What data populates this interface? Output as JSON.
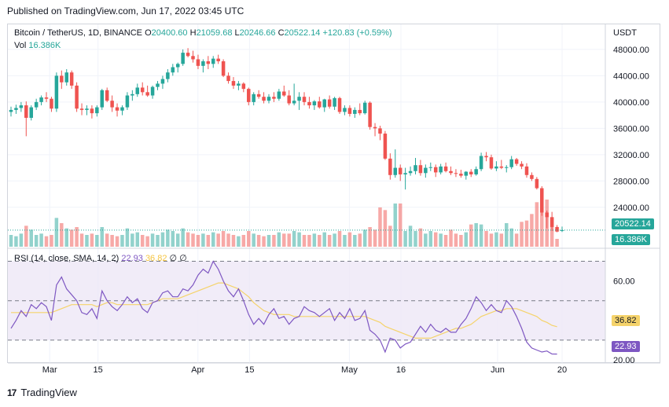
{
  "header": {
    "published": "Published on TradingView.com, Jun 17, 2022 03:45 UTC"
  },
  "legend": {
    "symbol": "Bitcoin / TetherUS, 1D, BINANCE",
    "o_label": "O",
    "o": "20400.60",
    "h_label": "H",
    "h": "21059.68",
    "l_label": "L",
    "l": "20246.66",
    "c_label": "C",
    "c": "20522.14",
    "change": "+120.83 (+0.59%)",
    "vol_label": "Vol",
    "vol": "16.386K",
    "rsi_label": "RSI (14, close, SMA, 14, 2)",
    "rsi_value": "22.93",
    "rsi_sma_value": "36.82",
    "rsi_extra": "∅ ∅"
  },
  "axis": {
    "currency": "USDT",
    "price_ticks": [
      "48000.00",
      "44000.00",
      "40000.00",
      "36000.00",
      "32000.00",
      "28000.00",
      "24000.00"
    ],
    "rsi_ticks": [
      "60.00",
      "40.00",
      "20.00"
    ],
    "x_ticks": [
      "Mar",
      "15",
      "Apr",
      "15",
      "May",
      "16",
      "Jun",
      "20"
    ]
  },
  "badges": {
    "last_price": "20522.14",
    "last_vol": "16.386K",
    "rsi_sma": "36.82",
    "rsi": "22.93"
  },
  "brand": {
    "name": "TradingView"
  },
  "colors": {
    "up": "#26a69a",
    "down": "#ef5350",
    "rsi": "#7e57c2",
    "rsi_sma": "#f5d36b",
    "rsi_band": "#ede7f6"
  },
  "chart_data": {
    "type": "candlestick",
    "ohlc": [
      [
        38500,
        39300,
        37800,
        38800
      ],
      [
        38800,
        39600,
        38200,
        39100
      ],
      [
        39100,
        40000,
        38500,
        39500
      ],
      [
        39500,
        40100,
        34800,
        37600
      ],
      [
        37600,
        39500,
        37200,
        39200
      ],
      [
        39200,
        40500,
        38800,
        40000
      ],
      [
        40000,
        41000,
        39500,
        40700
      ],
      [
        40700,
        41500,
        40000,
        40500
      ],
      [
        40500,
        40800,
        38500,
        39000
      ],
      [
        39000,
        44500,
        38500,
        44000
      ],
      [
        44000,
        44800,
        42000,
        43000
      ],
      [
        43000,
        45000,
        42500,
        44500
      ],
      [
        44500,
        44800,
        42000,
        42500
      ],
      [
        42500,
        43000,
        38500,
        39000
      ],
      [
        39000,
        39800,
        38000,
        38800
      ],
      [
        38800,
        39500,
        38000,
        39000
      ],
      [
        39000,
        39500,
        37500,
        38300
      ],
      [
        38300,
        39500,
        37800,
        39200
      ],
      [
        39200,
        42000,
        38800,
        41800
      ],
      [
        41800,
        42200,
        40000,
        40200
      ],
      [
        40200,
        41000,
        38500,
        39200
      ],
      [
        39200,
        39800,
        37800,
        38700
      ],
      [
        38700,
        39500,
        38000,
        39200
      ],
      [
        39200,
        41500,
        38800,
        41000
      ],
      [
        41000,
        41800,
        40200,
        41200
      ],
      [
        41200,
        42800,
        40800,
        42200
      ],
      [
        42200,
        43000,
        41000,
        41500
      ],
      [
        41500,
        42500,
        40800,
        41000
      ],
      [
        41000,
        42500,
        40500,
        42300
      ],
      [
        42300,
        43200,
        41800,
        42800
      ],
      [
        42800,
        44000,
        42000,
        43500
      ],
      [
        43500,
        45000,
        43000,
        44500
      ],
      [
        44500,
        45800,
        44000,
        45300
      ],
      [
        45300,
        46000,
        44500,
        45800
      ],
      [
        45800,
        48000,
        45500,
        47500
      ],
      [
        47500,
        48200,
        46800,
        47000
      ],
      [
        47000,
        47800,
        46000,
        46500
      ],
      [
        46500,
        47200,
        45000,
        45500
      ],
      [
        45500,
        46500,
        44500,
        46200
      ],
      [
        46200,
        47000,
        45000,
        45800
      ],
      [
        45800,
        47000,
        45200,
        46600
      ],
      [
        46600,
        47200,
        45800,
        46200
      ],
      [
        46200,
        46500,
        43800,
        44000
      ],
      [
        44000,
        44500,
        42800,
        43200
      ],
      [
        43200,
        43800,
        42000,
        42500
      ],
      [
        42500,
        43200,
        41800,
        42800
      ],
      [
        42800,
        43000,
        41500,
        42000
      ],
      [
        42000,
        42200,
        39500,
        40000
      ],
      [
        40000,
        41500,
        39500,
        41200
      ],
      [
        41200,
        41800,
        40500,
        40800
      ],
      [
        40800,
        41500,
        39800,
        40200
      ],
      [
        40200,
        41200,
        39800,
        40800
      ],
      [
        40800,
        41500,
        40000,
        40500
      ],
      [
        40500,
        42000,
        40200,
        41600
      ],
      [
        41600,
        42500,
        40800,
        41000
      ],
      [
        41000,
        41800,
        39500,
        39800
      ],
      [
        39800,
        42800,
        39500,
        40200
      ],
      [
        40200,
        41500,
        38800,
        40800
      ],
      [
        40800,
        41500,
        39500,
        40000
      ],
      [
        40000,
        40800,
        39000,
        39500
      ],
      [
        39500,
        40300,
        38800,
        40100
      ],
      [
        40100,
        40800,
        39000,
        39200
      ],
      [
        39200,
        40500,
        38500,
        40400
      ],
      [
        40400,
        41000,
        39000,
        39300
      ],
      [
        39300,
        40800,
        38800,
        40600
      ],
      [
        40600,
        40800,
        38200,
        38500
      ],
      [
        38500,
        39500,
        38000,
        39100
      ],
      [
        39100,
        39500,
        37800,
        38200
      ],
      [
        38200,
        39200,
        37600,
        38800
      ],
      [
        38800,
        39800,
        38000,
        38300
      ],
      [
        38300,
        40200,
        38100,
        39900
      ],
      [
        39900,
        40100,
        35800,
        36200
      ],
      [
        36200,
        36800,
        34800,
        36000
      ],
      [
        36000,
        36400,
        34200,
        35200
      ],
      [
        35200,
        35600,
        31200,
        31400
      ],
      [
        31400,
        32200,
        28200,
        28900
      ],
      [
        28900,
        32800,
        28500,
        30000
      ],
      [
        30000,
        30500,
        28000,
        29000
      ],
      [
        29000,
        30000,
        26700,
        29200
      ],
      [
        29200,
        30200,
        28800,
        29500
      ],
      [
        29500,
        31500,
        29000,
        30400
      ],
      [
        30400,
        31200,
        28800,
        29200
      ],
      [
        29200,
        30500,
        28500,
        30000
      ],
      [
        30000,
        30800,
        29500,
        30100
      ],
      [
        30100,
        30500,
        28600,
        29300
      ],
      [
        29300,
        30600,
        29000,
        30200
      ],
      [
        30200,
        30800,
        29300,
        29500
      ],
      [
        29500,
        30200,
        28900,
        29200
      ],
      [
        29200,
        29800,
        28600,
        29100
      ],
      [
        29100,
        29700,
        28500,
        28800
      ],
      [
        28800,
        29500,
        28200,
        29400
      ],
      [
        29400,
        29800,
        28600,
        29000
      ],
      [
        29000,
        30200,
        28800,
        29800
      ],
      [
        29800,
        32300,
        29500,
        31800
      ],
      [
        31800,
        32400,
        31000,
        31600
      ],
      [
        31600,
        32000,
        29700,
        29900
      ],
      [
        29900,
        31000,
        29500,
        30200
      ],
      [
        30200,
        31200,
        29800,
        30000
      ],
      [
        30000,
        30400,
        29300,
        30100
      ],
      [
        30100,
        31800,
        29800,
        31300
      ],
      [
        31300,
        31500,
        30300,
        30600
      ],
      [
        30600,
        31000,
        29800,
        30200
      ],
      [
        30200,
        30700,
        28500,
        28900
      ],
      [
        28900,
        29300,
        28000,
        28300
      ],
      [
        28300,
        28600,
        26700,
        26900
      ],
      [
        26900,
        27200,
        22700,
        23200
      ],
      [
        23200,
        23500,
        20800,
        22500
      ],
      [
        22500,
        23300,
        20400,
        21000
      ],
      [
        21000,
        21300,
        20200,
        20300
      ],
      [
        20400,
        21060,
        20247,
        20522
      ]
    ],
    "volume": [
      9,
      8,
      10,
      16,
      13,
      9,
      10,
      8,
      9,
      22,
      18,
      14,
      13,
      15,
      10,
      9,
      10,
      9,
      15,
      10,
      9,
      8,
      9,
      14,
      10,
      11,
      9,
      8,
      10,
      9,
      11,
      13,
      12,
      10,
      14,
      11,
      10,
      9,
      10,
      9,
      11,
      10,
      12,
      10,
      9,
      8,
      9,
      12,
      10,
      9,
      8,
      9,
      9,
      11,
      10,
      10,
      12,
      11,
      9,
      9,
      10,
      9,
      11,
      9,
      10,
      12,
      9,
      11,
      9,
      10,
      13,
      15,
      13,
      30,
      28,
      16,
      33,
      33,
      12,
      16,
      12,
      14,
      10,
      12,
      11,
      10,
      9,
      13,
      10,
      9,
      11,
      17,
      18,
      17,
      12,
      10,
      11,
      10,
      18,
      14,
      10,
      19,
      20,
      25,
      34,
      30,
      36,
      22,
      6
    ],
    "rsi": [
      36,
      40,
      45,
      42,
      48,
      46,
      49,
      47,
      40,
      58,
      62,
      56,
      53,
      50,
      44,
      43,
      46,
      41,
      55,
      50,
      47,
      45,
      48,
      52,
      49,
      51,
      46,
      44,
      49,
      50,
      54,
      55,
      52,
      52,
      56,
      55,
      58,
      63,
      66,
      64,
      70,
      66,
      60,
      55,
      52,
      56,
      50,
      43,
      38,
      41,
      38,
      43,
      46,
      41,
      42,
      38,
      41,
      42,
      47,
      45,
      44,
      42,
      44,
      46,
      40,
      44,
      41,
      46,
      40,
      41,
      45,
      35,
      33,
      30,
      24,
      31,
      30,
      26,
      28,
      29,
      33,
      37,
      34,
      38,
      35,
      34,
      36,
      34,
      34,
      38,
      41,
      46,
      52,
      49,
      45,
      48,
      45,
      44,
      50,
      47,
      42,
      36,
      29,
      26,
      25,
      24,
      24.5,
      23,
      22.93
    ],
    "rsi_sma": [
      44,
      44,
      44,
      44,
      44,
      44,
      44,
      44,
      44,
      45,
      46,
      47,
      48,
      48,
      48,
      48,
      48,
      47,
      48,
      49,
      49,
      48,
      48,
      48,
      48,
      48,
      48,
      48,
      49,
      50,
      51,
      51,
      51,
      51,
      52,
      53,
      54,
      55,
      56,
      57,
      58,
      59,
      59,
      58,
      57,
      56,
      54,
      52,
      49,
      47,
      45,
      44,
      43,
      43,
      43,
      43,
      42,
      42,
      42,
      42,
      42,
      42,
      42,
      42,
      42,
      42,
      42,
      42,
      42,
      42,
      42,
      41,
      40,
      39,
      37,
      36,
      35,
      34,
      33,
      32,
      31,
      31,
      31,
      31,
      32,
      33,
      34,
      35,
      36,
      36,
      37,
      38,
      40,
      42,
      43,
      44,
      45,
      45,
      46,
      46,
      46,
      45,
      44,
      43,
      42,
      40,
      39,
      37.5,
      36.82
    ],
    "ylim": [
      18000,
      50500
    ],
    "rsi_ylim": [
      20,
      75
    ],
    "rsi_levels": [
      70,
      50,
      30
    ]
  }
}
